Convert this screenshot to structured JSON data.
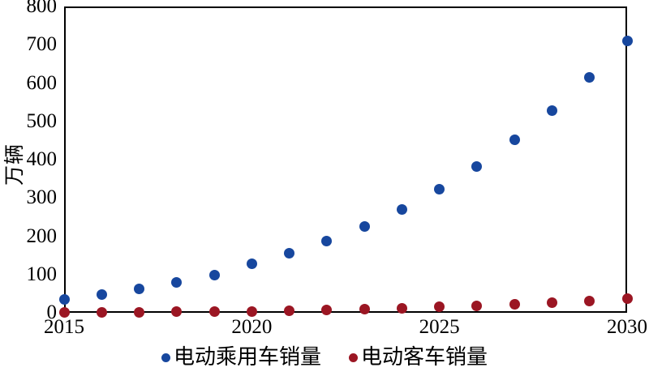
{
  "figure": {
    "y_axis_label": "万辆",
    "legend": [
      {
        "label": "电动乘用车销量",
        "color": "#17479E"
      },
      {
        "label": "电动客车销量",
        "color": "#9B1623"
      }
    ]
  },
  "chart_data": {
    "type": "scatter",
    "title": "",
    "xlabel": "",
    "ylabel": "万辆",
    "x": [
      2015,
      2016,
      2017,
      2018,
      2019,
      2020,
      2021,
      2022,
      2023,
      2024,
      2025,
      2026,
      2027,
      2028,
      2029,
      2030
    ],
    "series": [
      {
        "name": "电动乘用车销量",
        "color": "#17479E",
        "values": [
          35,
          48,
          62,
          80,
          98,
          127,
          155,
          187,
          225,
          270,
          323,
          383,
          451,
          528,
          615,
          710
        ]
      },
      {
        "name": "电动客车销量",
        "color": "#9B1623",
        "values": [
          1,
          2,
          2,
          3,
          3,
          4,
          6,
          8,
          10,
          12,
          15,
          18,
          22,
          27,
          31,
          36
        ]
      }
    ],
    "xlim": [
      2015,
      2030
    ],
    "ylim": [
      0,
      800
    ],
    "x_ticks": [
      2015,
      2020,
      2025,
      2030
    ],
    "y_ticks": [
      0,
      100,
      200,
      300,
      400,
      500,
      600,
      700,
      800
    ],
    "grid": false,
    "legend_position": "bottom"
  }
}
